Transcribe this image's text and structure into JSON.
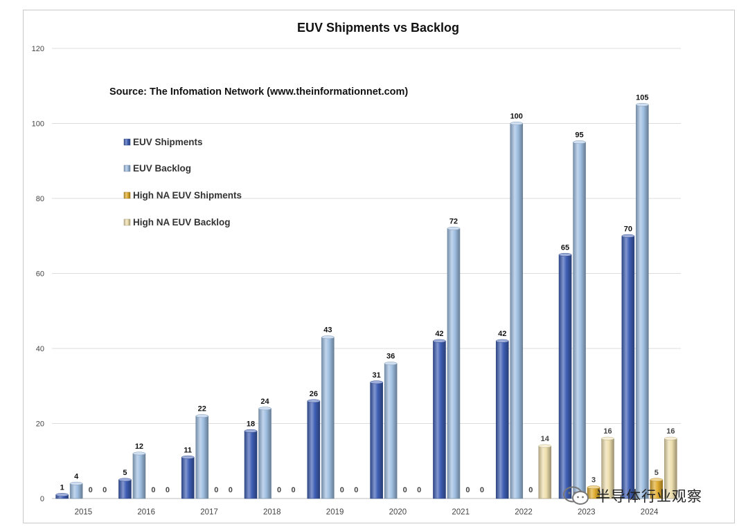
{
  "chart_data": {
    "type": "bar",
    "title": "EUV Shipments vs Backlog",
    "annotation": "Source: The Infomation Network (www.theinformationnet.com)",
    "xlabel": "",
    "ylabel": "",
    "ylim": [
      0,
      120
    ],
    "yticks": [
      0,
      20,
      40,
      60,
      80,
      100,
      120
    ],
    "grid": true,
    "legend_position": "top-left",
    "categories": [
      "2015",
      "2016",
      "2017",
      "2018",
      "2019",
      "2020",
      "2021",
      "2022",
      "2023",
      "2024"
    ],
    "series": [
      {
        "name": "EUV Shipments",
        "values": [
          1,
          5,
          11,
          18,
          26,
          31,
          42,
          42,
          65,
          70
        ],
        "color": "#3f5fb5"
      },
      {
        "name": "EUV Backlog",
        "values": [
          4,
          12,
          22,
          24,
          43,
          36,
          72,
          100,
          95,
          105
        ],
        "color": "#9fbfe2"
      },
      {
        "name": "High NA EUV Shipments",
        "values": [
          0,
          0,
          0,
          0,
          0,
          0,
          0,
          0,
          3,
          5
        ],
        "color": "#e0ac2e"
      },
      {
        "name": "High NA EUV Backlog",
        "values": [
          0,
          0,
          0,
          0,
          0,
          0,
          0,
          14,
          16,
          16
        ],
        "color": "#eedfae"
      }
    ]
  },
  "watermark": {
    "text": "半导体行业观察",
    "icon": "wechat-icon"
  }
}
